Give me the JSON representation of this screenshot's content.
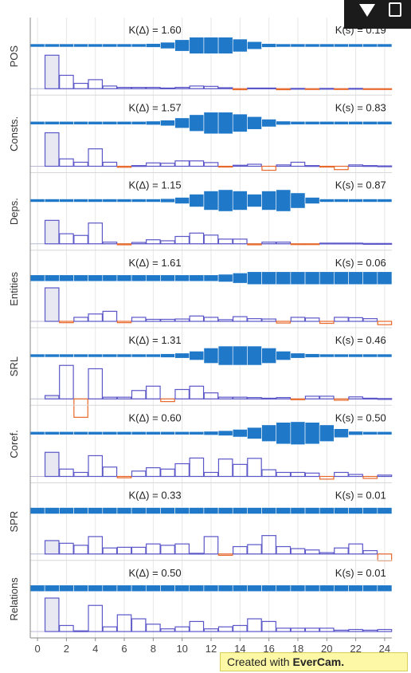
{
  "chart_data": {
    "type": "bar",
    "x": [
      0,
      1,
      2,
      3,
      4,
      5,
      6,
      7,
      8,
      9,
      10,
      11,
      12,
      13,
      14,
      15,
      16,
      17,
      18,
      19,
      20,
      21,
      22,
      23,
      24
    ],
    "x_ticks": [
      "0",
      "2",
      "4",
      "6",
      "8",
      "10",
      "12",
      "14",
      "16",
      "18",
      "20",
      "22",
      "24"
    ],
    "xlim": [
      -0.5,
      24.5
    ],
    "grid": true,
    "legend": "none",
    "colors": {
      "bar_positive": "#5b57c8",
      "bar_negative": "#e8692c",
      "fill_first": "#e8e8f2",
      "band": "#1f78c8",
      "band_line": "#2a7fcf",
      "grid": "#e6e6e6",
      "axis": "#8a8a8a"
    },
    "panels": [
      {
        "label": "POS",
        "k_delta": "K(Δ) = 1.60",
        "k_s": "K(s) = 0.19",
        "bars": [
          0,
          1.0,
          0.4,
          0.16,
          0.27,
          0.08,
          0.04,
          0.04,
          0.04,
          0.02,
          0.04,
          0.08,
          0.07,
          0.03,
          -0.03,
          0.02,
          0.02,
          -0.03,
          0.01,
          -0.02,
          0.01,
          -0.01,
          0.01,
          -0.01,
          -0.01
        ],
        "band": [
          0.5,
          0.5,
          0.5,
          0.5,
          0.5,
          0.5,
          0.5,
          0.5,
          0.6,
          1.0,
          1.8,
          2.6,
          2.6,
          2.6,
          2.0,
          1.2,
          0.6,
          0.5,
          0.5,
          0.5,
          0.5,
          0.5,
          0.5,
          0.5,
          0.5
        ]
      },
      {
        "label": "Consts.",
        "k_delta": "K(Δ) = 1.57",
        "k_s": "K(s) = 0.83",
        "bars": [
          0,
          1.0,
          0.22,
          0.12,
          0.52,
          0.12,
          -0.03,
          0.02,
          0.1,
          0.09,
          0.16,
          0.16,
          0.11,
          -0.02,
          0.03,
          0.06,
          -0.12,
          0.04,
          0.12,
          0.02,
          -0.02,
          -0.1,
          0.04,
          0.02,
          0.01
        ],
        "band": [
          0.5,
          0.5,
          0.5,
          0.5,
          0.5,
          0.5,
          0.5,
          0.5,
          0.6,
          0.9,
          1.6,
          2.6,
          3.4,
          3.4,
          2.8,
          2.0,
          1.2,
          0.6,
          0.5,
          0.5,
          0.5,
          0.5,
          0.5,
          0.5,
          0.5
        ]
      },
      {
        "label": "Deps.",
        "k_delta": "K(Δ) = 1.15",
        "k_s": "K(s) = 0.87",
        "bars": [
          0,
          0.7,
          0.3,
          0.25,
          0.62,
          0.05,
          -0.03,
          0.04,
          0.12,
          0.09,
          0.22,
          0.32,
          0.26,
          0.14,
          0.14,
          -0.03,
          0.05,
          0.05,
          -0.02,
          -0.02,
          0.02,
          0.02,
          0.02,
          0.01,
          0.01
        ],
        "band": [
          0.5,
          0.5,
          0.5,
          0.5,
          0.5,
          0.5,
          0.5,
          0.5,
          0.5,
          0.6,
          1.0,
          2.0,
          3.0,
          3.4,
          3.0,
          2.0,
          3.0,
          3.4,
          2.4,
          1.0,
          0.5,
          0.5,
          0.5,
          0.5,
          0.5
        ]
      },
      {
        "label": "Entities",
        "k_delta": "K(Δ) = 1.61",
        "k_s": "K(s) = 0.06",
        "bars": [
          0,
          1.0,
          -0.04,
          0.12,
          0.22,
          0.3,
          -0.04,
          0.12,
          0.06,
          0.06,
          0.07,
          0.16,
          0.12,
          0.05,
          0.14,
          0.08,
          0.07,
          -0.05,
          0.12,
          0.1,
          -0.06,
          0.12,
          0.11,
          0.08,
          -0.1
        ],
        "band": [
          1.0,
          1.0,
          1.0,
          1.0,
          1.0,
          1.0,
          1.0,
          1.0,
          1.0,
          1.0,
          1.0,
          1.0,
          1.0,
          1.2,
          1.6,
          2.0,
          2.0,
          2.0,
          2.0,
          2.0,
          2.0,
          2.0,
          2.0,
          2.0,
          2.0
        ]
      },
      {
        "label": "SRL",
        "k_delta": "K(Δ) = 1.31",
        "k_s": "K(s) = 0.46",
        "bars": [
          0,
          0.1,
          1.0,
          -0.55,
          0.9,
          0.05,
          0.05,
          0.25,
          0.38,
          -0.08,
          0.28,
          0.38,
          0.18,
          0.05,
          0.05,
          0.04,
          0.02,
          0.04,
          -0.02,
          0.08,
          0.08,
          -0.04,
          0.06,
          0.02,
          0.01
        ],
        "band": [
          0.5,
          0.5,
          0.5,
          0.5,
          0.5,
          0.5,
          0.5,
          0.5,
          0.5,
          0.6,
          0.8,
          1.4,
          2.4,
          3.0,
          3.0,
          3.0,
          2.4,
          1.4,
          0.8,
          0.6,
          0.5,
          0.5,
          0.5,
          0.5,
          0.5
        ]
      },
      {
        "label": "Coref.",
        "k_delta": "K(Δ) = 0.60",
        "k_s": "K(s) = 0.50",
        "bars": [
          0,
          0.72,
          0.22,
          0.12,
          0.62,
          0.28,
          -0.04,
          0.16,
          0.26,
          0.22,
          0.38,
          0.55,
          0.12,
          0.52,
          0.36,
          0.54,
          0.2,
          0.12,
          0.12,
          0.1,
          -0.08,
          0.12,
          0.06,
          -0.06,
          0.04
        ],
        "band": [
          0.5,
          0.5,
          0.5,
          0.5,
          0.5,
          0.5,
          0.5,
          0.5,
          0.5,
          0.5,
          0.5,
          0.5,
          0.6,
          0.8,
          1.2,
          1.8,
          2.6,
          3.4,
          3.6,
          3.4,
          2.6,
          1.4,
          0.6,
          0.5,
          0.5
        ]
      },
      {
        "label": "SPR",
        "k_delta": "K(Δ) = 0.33",
        "k_s": "K(s) = 0.01",
        "bars": [
          0,
          0.4,
          0.32,
          0.26,
          0.52,
          0.18,
          0.2,
          0.2,
          0.3,
          0.26,
          0.3,
          0.02,
          0.52,
          -0.04,
          0.22,
          0.28,
          0.55,
          0.22,
          0.16,
          0.12,
          0.04,
          0.18,
          0.3,
          0.1,
          -0.2
        ],
        "band": [
          1.0,
          1.0,
          1.0,
          1.0,
          1.0,
          1.0,
          1.0,
          1.0,
          1.0,
          1.0,
          1.0,
          1.0,
          1.0,
          1.0,
          1.0,
          1.0,
          1.0,
          1.0,
          1.0,
          1.0,
          1.0,
          1.0,
          1.0,
          1.0,
          1.0
        ]
      },
      {
        "label": "Relations",
        "k_delta": "K(Δ) = 0.50",
        "k_s": "K(s) = 0.01",
        "bars": [
          0,
          1.0,
          0.18,
          0.02,
          0.78,
          0.14,
          0.5,
          0.38,
          0.22,
          0.08,
          0.14,
          0.3,
          0.08,
          0.14,
          0.18,
          0.38,
          0.3,
          0.1,
          0.1,
          0.1,
          0.1,
          0.04,
          0.06,
          0.04,
          0.06
        ],
        "band": [
          1.0,
          1.0,
          1.0,
          1.0,
          1.0,
          1.0,
          1.0,
          1.0,
          1.0,
          1.0,
          1.0,
          1.0,
          1.0,
          1.0,
          1.0,
          1.0,
          1.0,
          1.0,
          1.0,
          1.0,
          1.0,
          1.0,
          1.0,
          1.0,
          1.0
        ]
      }
    ]
  },
  "watermark": {
    "prefix": "Created with ",
    "brand": "EverCam."
  },
  "toolbar": {
    "icon_dropdown": "triangle-down-icon",
    "icon_window": "copy-icon"
  }
}
